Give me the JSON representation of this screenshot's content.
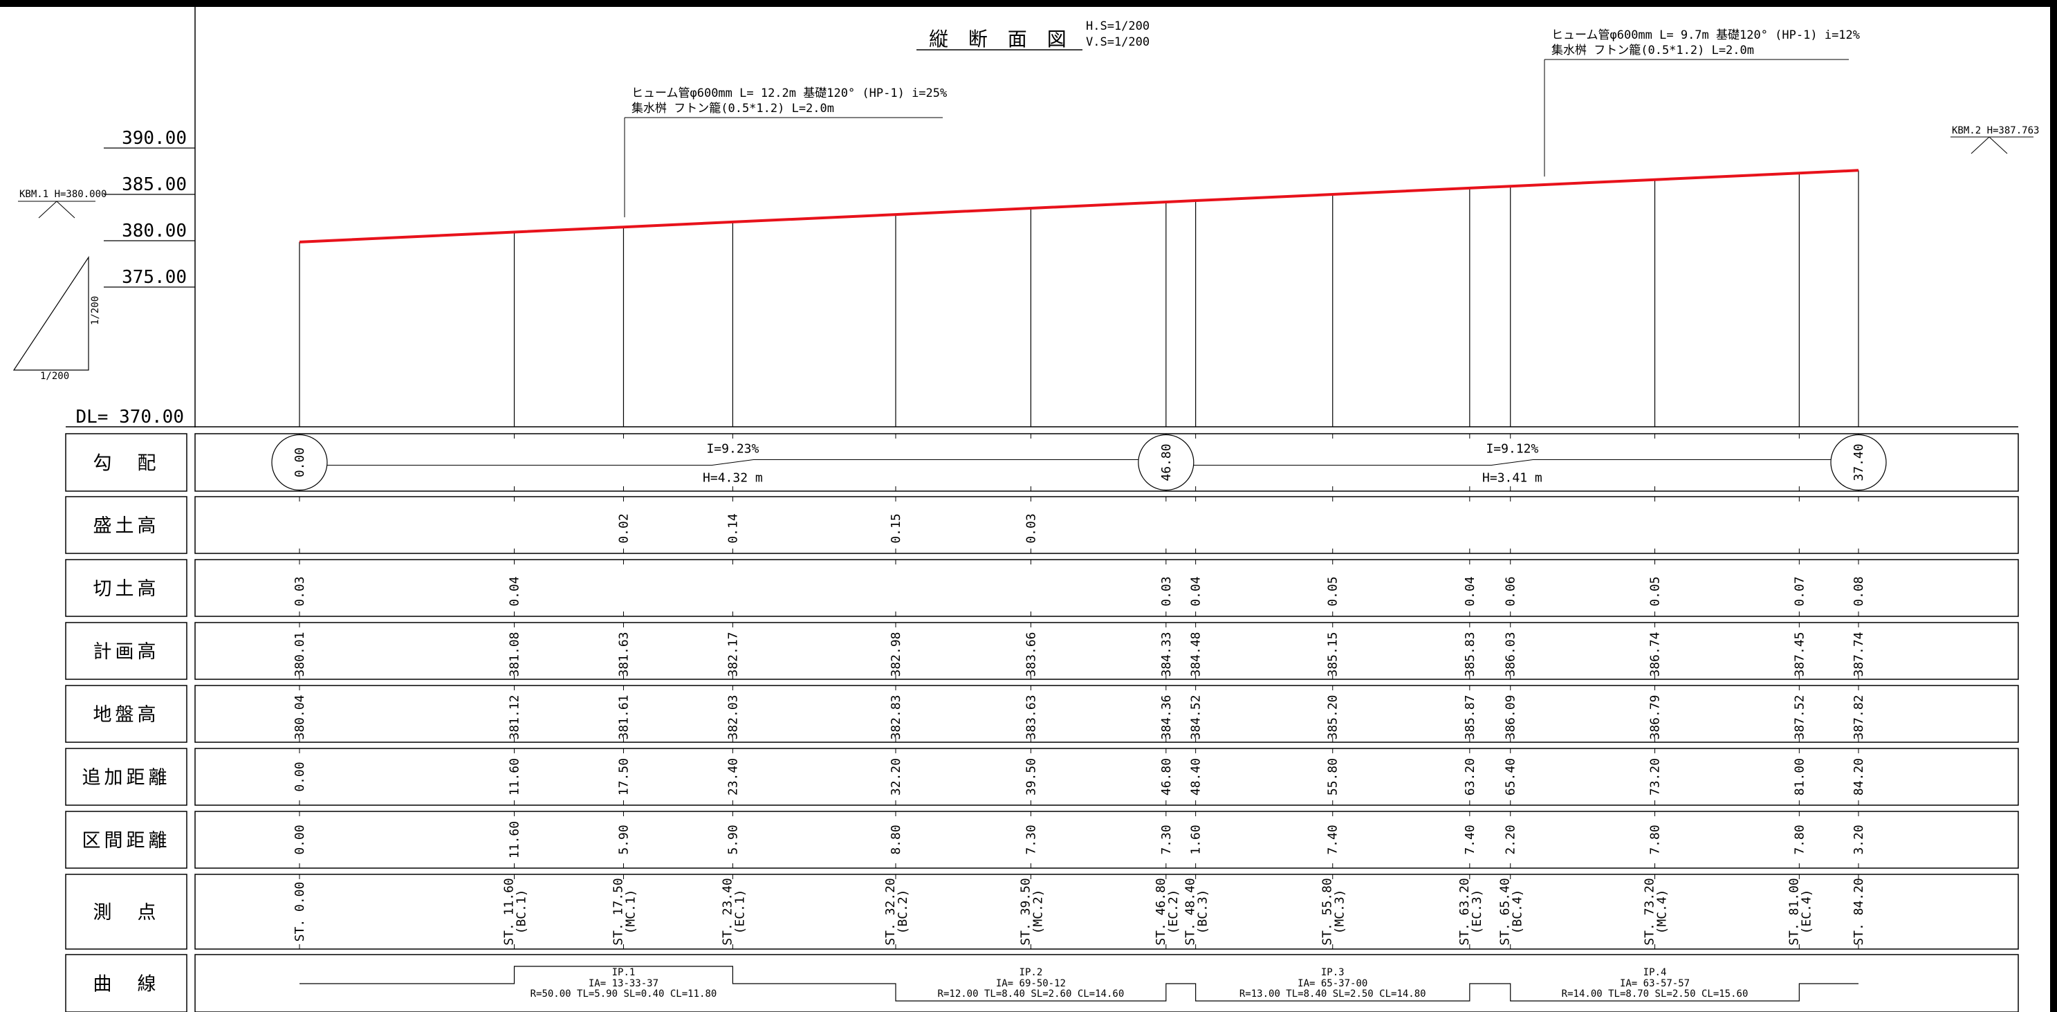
{
  "title": {
    "main": "縦 断 面 図",
    "h_scale": "H.S=1/200",
    "v_scale": "V.S=1/200"
  },
  "axis": {
    "ticks": [
      {
        "label": "390.00",
        "value": 390
      },
      {
        "label": "385.00",
        "value": 385
      },
      {
        "label": "380.00",
        "value": 380
      },
      {
        "label": "375.00",
        "value": 375
      }
    ],
    "datum_label": "DL= 370.00"
  },
  "benchmarks": {
    "left": "KBM.1 H=380.000",
    "right": "KBM.2 H=387.763"
  },
  "scale_triangle": {
    "vertical": "1/200",
    "horizontal": "1/200"
  },
  "annotations": [
    {
      "line1": "ヒューム管φ600mm L= 12.2m 基礎120° (HP-1) i=25%",
      "line2": "集水桝 フトン籠(0.5*1.2) L=2.0m"
    },
    {
      "line1": "ヒューム管φ600mm L= 9.7m 基礎120° (HP-1) i=12%",
      "line2": "集水桝 フトン籠(0.5*1.2) L=2.0m"
    }
  ],
  "row_labels": [
    "勾　配",
    "盛土高",
    "切土高",
    "計画高",
    "地盤高",
    "追加距離",
    "区間距離",
    "測　点",
    "曲　線"
  ],
  "grade": {
    "circles": [
      "0.00",
      "46.80",
      "37.40"
    ],
    "segments": [
      {
        "grade": "I=9.23%",
        "height": "H=4.32 m"
      },
      {
        "grade": "I=9.12%",
        "height": "H=3.41 m"
      }
    ]
  },
  "stations": [
    {
      "cum": "0.00",
      "interval": "0.00",
      "ground": "380.04",
      "plan": "380.01",
      "cut": "0.03",
      "fill": "",
      "name": "ST. 0.00",
      "sub": ""
    },
    {
      "cum": "11.60",
      "interval": "11.60",
      "ground": "381.12",
      "plan": "381.08",
      "cut": "0.04",
      "fill": "",
      "name": "ST. 11.60",
      "sub": "(BC.1)"
    },
    {
      "cum": "17.50",
      "interval": "5.90",
      "ground": "381.61",
      "plan": "381.63",
      "cut": "",
      "fill": "0.02",
      "name": "ST. 17.50",
      "sub": "(MC.1)"
    },
    {
      "cum": "23.40",
      "interval": "5.90",
      "ground": "382.03",
      "plan": "382.17",
      "cut": "",
      "fill": "0.14",
      "name": "ST. 23.40",
      "sub": "(EC.1)"
    },
    {
      "cum": "32.20",
      "interval": "8.80",
      "ground": "382.83",
      "plan": "382.98",
      "cut": "",
      "fill": "0.15",
      "name": "ST. 32.20",
      "sub": "(BC.2)"
    },
    {
      "cum": "39.50",
      "interval": "7.30",
      "ground": "383.63",
      "plan": "383.66",
      "cut": "",
      "fill": "0.03",
      "name": "ST. 39.50",
      "sub": "(MC.2)"
    },
    {
      "cum": "46.80",
      "interval": "7.30",
      "ground": "384.36",
      "plan": "384.33",
      "cut": "0.03",
      "fill": "",
      "name": "ST. 46.80",
      "sub": "(EC.2)"
    },
    {
      "cum": "48.40",
      "interval": "1.60",
      "ground": "384.52",
      "plan": "384.48",
      "cut": "0.04",
      "fill": "",
      "name": "ST. 48.40",
      "sub": "(BC.3)"
    },
    {
      "cum": "55.80",
      "interval": "7.40",
      "ground": "385.20",
      "plan": "385.15",
      "cut": "0.05",
      "fill": "",
      "name": "ST. 55.80",
      "sub": "(MC.3)"
    },
    {
      "cum": "63.20",
      "interval": "7.40",
      "ground": "385.87",
      "plan": "385.83",
      "cut": "0.04",
      "fill": "",
      "name": "ST. 63.20",
      "sub": "(EC.3)"
    },
    {
      "cum": "65.40",
      "interval": "2.20",
      "ground": "386.09",
      "plan": "386.03",
      "cut": "0.06",
      "fill": "",
      "name": "ST. 65.40",
      "sub": "(BC.4)"
    },
    {
      "cum": "73.20",
      "interval": "7.80",
      "ground": "386.79",
      "plan": "386.74",
      "cut": "0.05",
      "fill": "",
      "name": "ST. 73.20",
      "sub": "(MC.4)"
    },
    {
      "cum": "81.00",
      "interval": "7.80",
      "ground": "387.52",
      "plan": "387.45",
      "cut": "0.07",
      "fill": "",
      "name": "ST. 81.00",
      "sub": "(EC.4)"
    },
    {
      "cum": "84.20",
      "interval": "3.20",
      "ground": "387.82",
      "plan": "387.74",
      "cut": "0.08",
      "fill": "",
      "name": "ST. 84.20",
      "sub": ""
    }
  ],
  "curves": [
    {
      "ip": "IP.1",
      "ia": "IA= 13-33-37",
      "params": "R=50.00 TL=5.90 SL=0.40 CL=11.80",
      "dir": "up"
    },
    {
      "ip": "IP.2",
      "ia": "IA= 69-50-12",
      "params": "R=12.00 TL=8.40 SL=2.60 CL=14.60",
      "dir": "down"
    },
    {
      "ip": "IP.3",
      "ia": "IA= 65-37-00",
      "params": "R=13.00 TL=8.40 SL=2.50 CL=14.80",
      "dir": "down"
    },
    {
      "ip": "IP.4",
      "ia": "IA= 63-57-57",
      "params": "R=14.00 TL=8.70 SL=2.50 CL=15.60",
      "dir": "down"
    }
  ],
  "colors": {
    "plan_line": "#e8121b",
    "ink": "#000000"
  }
}
